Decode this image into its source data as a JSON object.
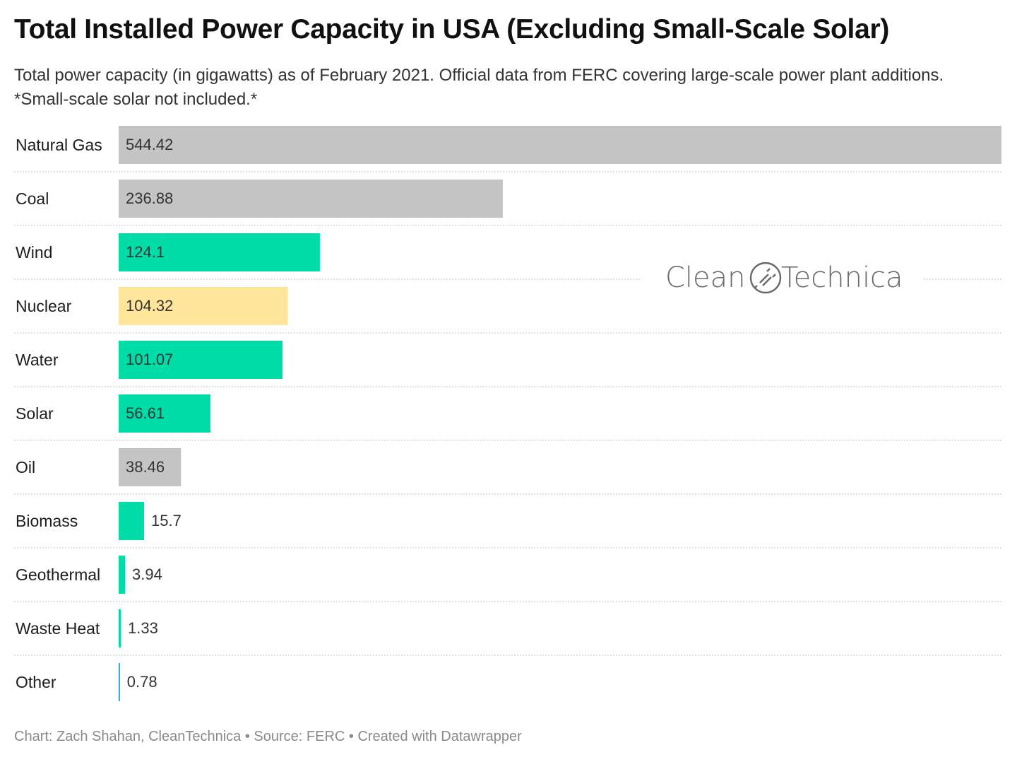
{
  "header": {
    "title": "Total Installed Power Capacity in USA (Excluding Small-Scale Solar)",
    "subtitle": "Total power capacity (in gigawatts) as of February 2021. Official data from FERC covering large-scale power plant additions. *Small-scale solar not included.*"
  },
  "watermark": {
    "text": "CleanTechnica",
    "icon": "plug-icon"
  },
  "footer": {
    "credit": "Chart: Zach Shahan, CleanTechnica • Source: FERC • Created with Datawrapper"
  },
  "chart_data": {
    "type": "bar",
    "orientation": "horizontal",
    "title": "Total Installed Power Capacity in USA (Excluding Small-Scale Solar)",
    "categories": [
      "Natural Gas",
      "Coal",
      "Wind",
      "Nuclear",
      "Water",
      "Solar",
      "Oil",
      "Biomass",
      "Geothermal",
      "Waste Heat",
      "Other"
    ],
    "values": [
      544.42,
      236.88,
      124.1,
      104.32,
      101.07,
      56.61,
      38.46,
      15.7,
      3.94,
      1.33,
      0.78
    ],
    "value_labels": [
      "544.42",
      "236.88",
      "124.1",
      "104.32",
      "101.07",
      "56.61",
      "38.46",
      "15.7",
      "3.94",
      "1.33",
      "0.78"
    ],
    "colors": [
      "#c4c4c4",
      "#c4c4c4",
      "#00dca8",
      "#ffe59c",
      "#00dca8",
      "#00dca8",
      "#c4c4c4",
      "#00dca8",
      "#00dca8",
      "#00dca8",
      "#1aa3c7"
    ],
    "xlim": [
      0,
      544.42
    ],
    "grid": false,
    "row_separators": "dotted"
  }
}
